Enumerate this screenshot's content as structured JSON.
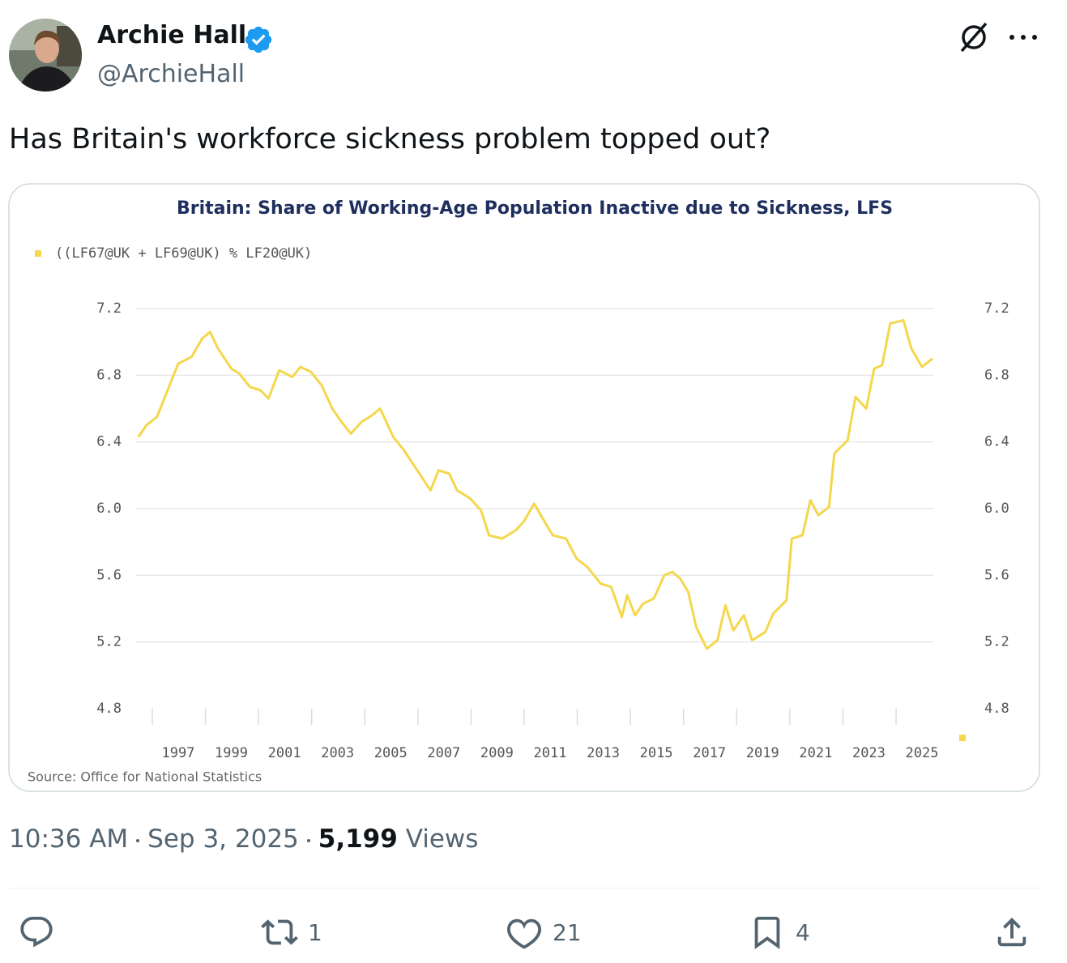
{
  "author": {
    "name": "Archie Hall",
    "handle": "@ArchieHall"
  },
  "tweet": {
    "text": "Has Britain's workforce sickness problem topped out?"
  },
  "chart_data": {
    "type": "line",
    "title": "Britain: Share of Working-Age Population Inactive due to Sickness, LFS",
    "source": "Source: Office for National Statistics",
    "x": [
      1995.5,
      1995.8,
      1996.2,
      1996.5,
      1996.8,
      1997.0,
      1997.5,
      1997.9,
      1998.2,
      1998.5,
      1999.0,
      1999.3,
      1999.7,
      2000.1,
      2000.4,
      2000.8,
      2001.3,
      2001.6,
      2002.0,
      2002.4,
      2002.8,
      2003.1,
      2003.5,
      2003.9,
      2004.3,
      2004.6,
      2005.1,
      2005.5,
      2006.0,
      2006.5,
      2006.8,
      2007.2,
      2007.5,
      2008.0,
      2008.4,
      2008.7,
      2009.2,
      2009.7,
      2010.0,
      2010.4,
      2010.8,
      2011.1,
      2011.6,
      2012.0,
      2012.4,
      2012.9,
      2013.3,
      2013.7,
      2013.9,
      2014.2,
      2014.5,
      2014.9,
      2015.3,
      2015.6,
      2015.9,
      2016.2,
      2016.5,
      2016.9,
      2017.3,
      2017.6,
      2017.9,
      2018.3,
      2018.6,
      2019.1,
      2019.4,
      2019.9,
      2020.1,
      2020.5,
      2020.8,
      2021.1,
      2021.5,
      2021.7,
      2022.2,
      2022.5,
      2022.9,
      2023.2,
      2023.5,
      2023.8,
      2024.3,
      2024.6,
      2025.0,
      2025.4
    ],
    "series": [
      {
        "name": "((LF67@UK + LF69@UK) % LF20@UK)",
        "color": "#f4d74c",
        "values": [
          6.43,
          6.5,
          6.55,
          6.67,
          6.79,
          6.87,
          6.91,
          7.02,
          7.06,
          6.96,
          6.84,
          6.81,
          6.73,
          6.71,
          6.66,
          6.83,
          6.79,
          6.85,
          6.82,
          6.74,
          6.6,
          6.53,
          6.45,
          6.52,
          6.56,
          6.6,
          6.43,
          6.35,
          6.23,
          6.11,
          6.23,
          6.21,
          6.11,
          6.06,
          5.99,
          5.84,
          5.82,
          5.87,
          5.92,
          6.03,
          5.92,
          5.84,
          5.82,
          5.7,
          5.65,
          5.55,
          5.53,
          5.35,
          5.48,
          5.36,
          5.43,
          5.46,
          5.6,
          5.62,
          5.58,
          5.5,
          5.29,
          5.16,
          5.21,
          5.42,
          5.27,
          5.36,
          5.21,
          5.26,
          5.37,
          5.45,
          5.82,
          5.84,
          6.05,
          5.96,
          6.01,
          6.33,
          6.41,
          6.67,
          6.6,
          6.84,
          6.86,
          7.11,
          7.13,
          6.96,
          6.85,
          6.9
        ]
      }
    ],
    "xlim": [
      1995.4,
      2025.5
    ],
    "xticks": [
      1997,
      1999,
      2001,
      2003,
      2005,
      2007,
      2009,
      2011,
      2013,
      2015,
      2017,
      2019,
      2021,
      2023,
      2025
    ],
    "ylim": [
      4.8,
      7.2
    ],
    "yticks": [
      7.2,
      6.8,
      6.4,
      {
        "value": 6,
        "label": "6.0"
      },
      5.6,
      5.2,
      4.8
    ],
    "grid": true,
    "legend": "top-left"
  },
  "footer": {
    "time": "10:36 AM",
    "date": "Sep 3, 2025",
    "views": "5,199",
    "views_label": "Views"
  },
  "actions": {
    "retweets": 1,
    "likes": 21,
    "bookmarks": 4
  }
}
